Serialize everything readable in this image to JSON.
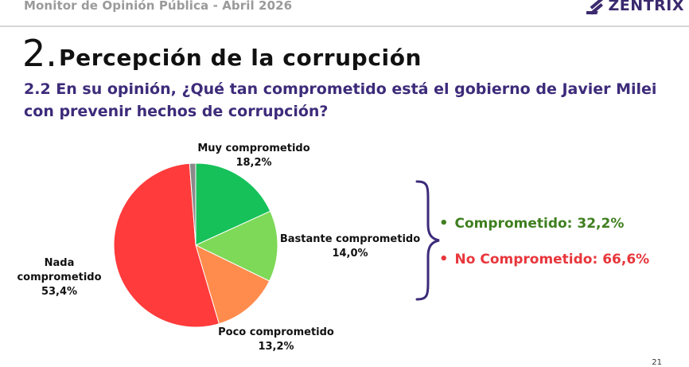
{
  "header": {
    "title": "Monitor de Opinión Pública - Abril 2026",
    "brand": "ZENTRIX"
  },
  "section": {
    "number": "2.",
    "title": "Percepción de la corrupción"
  },
  "question": "2.2 En su opinión, ¿Qué tan comprometido está el gobierno de Javier Milei con prevenir hechos de corrupción?",
  "chart_data": {
    "type": "pie",
    "categories": [
      "Muy comprometido",
      "Bastante comprometido",
      "Poco comprometido",
      "Nada comprometido",
      ""
    ],
    "values": [
      18.2,
      14.0,
      13.2,
      53.4,
      1.2
    ],
    "labels": [
      "18,2%",
      "14,0%",
      "13,2%",
      "53,4%",
      ""
    ],
    "colors": [
      "#16c15a",
      "#7dd957",
      "#ff8c4d",
      "#ff3b3b",
      "#8a8a8a"
    ]
  },
  "summary": {
    "comprometido": {
      "text": "Comprometido: 32,2%",
      "color": "#3f7f1f"
    },
    "no_comprometido": {
      "text": "No Comprometido: 66,6%",
      "color": "#e8363c"
    }
  },
  "page_number": "21"
}
